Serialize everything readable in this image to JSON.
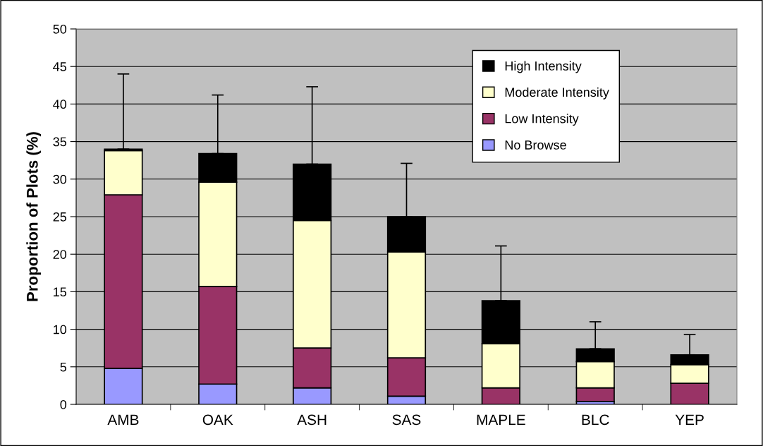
{
  "chart_data": {
    "type": "bar",
    "stacked": true,
    "ylabel": "Proportion of Plots (%)",
    "categories": [
      "AMB",
      "OAK",
      "ASH",
      "SAS",
      "MAPLE",
      "BLC",
      "YEP"
    ],
    "series": [
      {
        "name": "No Browse",
        "color": "#9999ff",
        "values": [
          4.8,
          2.7,
          2.2,
          1.1,
          0,
          0.4,
          0
        ]
      },
      {
        "name": "Low Intensity",
        "color": "#993366",
        "values": [
          23.1,
          13.0,
          5.3,
          5.1,
          2.2,
          1.8,
          2.8
        ]
      },
      {
        "name": "Moderate Intensity",
        "color": "#ffffcc",
        "values": [
          5.9,
          13.9,
          17.0,
          14.1,
          5.9,
          3.5,
          2.5
        ]
      },
      {
        "name": "High Intensity",
        "color": "#000000",
        "values": [
          0.2,
          3.8,
          7.5,
          4.7,
          5.7,
          1.7,
          1.3
        ],
        "errors": [
          [
            34.0,
            44.0
          ],
          [
            33.4,
            41.2
          ],
          [
            32.0,
            42.3
          ],
          [
            25.0,
            32.1
          ],
          [
            13.8,
            21.1
          ],
          [
            7.4,
            11.0
          ],
          [
            6.6,
            9.3
          ]
        ]
      }
    ],
    "ylim": [
      0,
      50
    ],
    "yticks": [
      0,
      5,
      10,
      15,
      20,
      25,
      30,
      35,
      40,
      45,
      50
    ],
    "grid": "y",
    "legend": "top right"
  }
}
